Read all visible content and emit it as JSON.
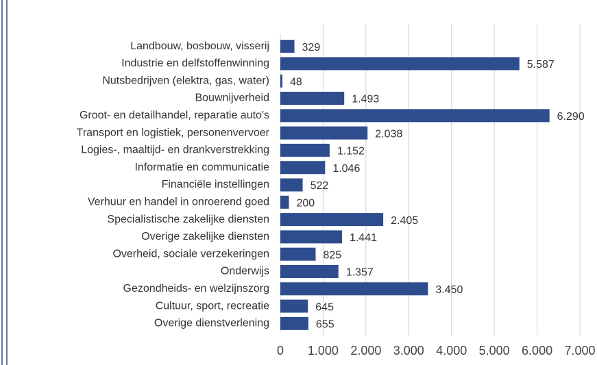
{
  "chart_data": {
    "type": "bar",
    "orientation": "horizontal",
    "categories": [
      "Landbouw, bosbouw, visserij",
      "Industrie en delfstoffenwinning",
      "Nutsbedrijven (elektra, gas, water)",
      "Bouwnijverheid",
      "Groot- en detailhandel, reparatie auto's",
      "Transport en logistiek, personenvervoer",
      "Logies-, maaltijd- en drankverstrekking",
      "Informatie en communicatie",
      "Financiële instellingen",
      "Verhuur en handel in onroerend goed",
      "Specialistische zakelijke diensten",
      "Overige zakelijke diensten",
      "Overheid, sociale verzekeringen",
      "Onderwijs",
      "Gezondheids- en welzijnszorg",
      "Cultuur, sport, recreatie",
      "Overige dienstverlening"
    ],
    "values": [
      329,
      5587,
      48,
      1493,
      6290,
      2038,
      1152,
      1046,
      522,
      200,
      2405,
      1441,
      825,
      1357,
      3450,
      645,
      655
    ],
    "value_labels": [
      "329",
      "5.587",
      "48",
      "1.493",
      "6.290",
      "2.038",
      "1.152",
      "1.046",
      "522",
      "200",
      "2.405",
      "1.441",
      "825",
      "1.357",
      "3.450",
      "645",
      "655"
    ],
    "color": "#2e4d8e",
    "xlim": [
      0,
      7000
    ],
    "xticks": [
      0,
      {
        "value": 1000,
        "label": "1.000"
      },
      {
        "value": 2000,
        "label": "2.000"
      },
      {
        "value": 3000,
        "label": "3.000"
      },
      {
        "value": 4000,
        "label": "4.000"
      },
      {
        "value": 5000,
        "label": "5.000"
      },
      {
        "value": 6000,
        "label": "6.000"
      },
      {
        "value": 7000,
        "label": "7.000"
      }
    ],
    "grid": true
  }
}
